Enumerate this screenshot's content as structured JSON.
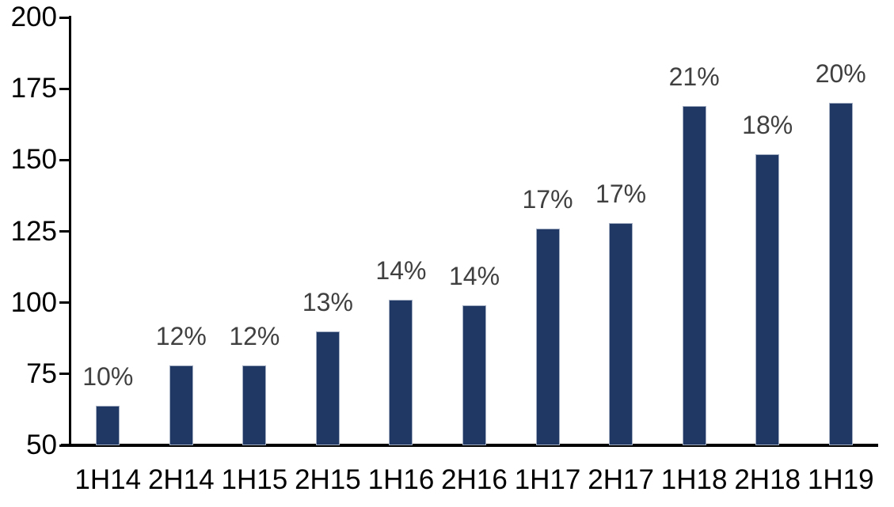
{
  "chart_data": {
    "type": "bar",
    "title": "",
    "xlabel": "",
    "ylabel": "",
    "categories": [
      "1H14",
      "2H14",
      "1H15",
      "2H15",
      "1H16",
      "2H16",
      "1H17",
      "2H17",
      "1H18",
      "2H18",
      "1H19"
    ],
    "values": [
      64,
      78,
      78,
      90,
      101,
      99,
      126,
      128,
      169,
      152,
      170
    ],
    "data_labels": [
      "10%",
      "12%",
      "12%",
      "13%",
      "14%",
      "14%",
      "17%",
      "17%",
      "21%",
      "18%",
      "20%"
    ],
    "ylim": [
      50,
      200
    ],
    "yticks": [
      50,
      75,
      100,
      125,
      150,
      175,
      200
    ],
    "grid": false,
    "legend": null,
    "colors": {
      "bar_fill": "#1f3864",
      "bar_border": "#a3aec2",
      "data_label": "#404040",
      "axis": "#000000",
      "tick_label": "#000000",
      "background": "#ffffff"
    }
  }
}
